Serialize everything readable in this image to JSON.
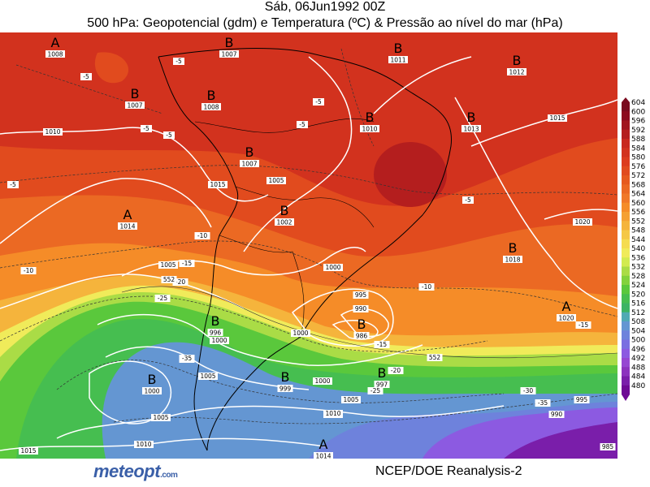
{
  "title": {
    "line1": "Sáb, 06Jun1992 00Z",
    "line2": "500 hPa: Geopotencial (gdm) e Temperatura (ºC) & Pressão ao nível do mar (hPa)"
  },
  "footer": {
    "logo": "meteopt",
    "logo_suffix": ".com",
    "credit": "NCEP/DOE Reanalysis-2"
  },
  "colorbar": {
    "levels": [
      "604",
      "600",
      "596",
      "592",
      "588",
      "584",
      "580",
      "576",
      "572",
      "568",
      "564",
      "560",
      "556",
      "552",
      "548",
      "544",
      "540",
      "536",
      "532",
      "528",
      "524",
      "520",
      "516",
      "512",
      "508",
      "504",
      "500",
      "496",
      "492",
      "488",
      "484",
      "480"
    ],
    "colors": [
      "#7a0a1e",
      "#8c0a1e",
      "#a0141e",
      "#b41e1e",
      "#c8281e",
      "#d2321e",
      "#dc3c1e",
      "#e14b1e",
      "#e65a1e",
      "#eb6923",
      "#f07828",
      "#f58c28",
      "#f5a032",
      "#f5b43c",
      "#f5c846",
      "#f5dc50",
      "#f0eb5a",
      "#d2eb50",
      "#aadc46",
      "#82d23c",
      "#5ac83c",
      "#46be50",
      "#3cb464",
      "#50aab4",
      "#6496d2",
      "#6e82dc",
      "#7a6ee1",
      "#8c5ae1",
      "#9646d2",
      "#8c32be",
      "#7a1eaa",
      "#6e0a96"
    ]
  },
  "pressure_systems": [
    {
      "type": "A",
      "value": "1008"
    },
    {
      "type": "B",
      "value": "1007"
    },
    {
      "type": "B",
      "value": "1011"
    },
    {
      "type": "B",
      "value": "1012"
    },
    {
      "type": "B",
      "value": "1007"
    },
    {
      "type": "B",
      "value": "1008"
    },
    {
      "type": "B",
      "value": "1010"
    },
    {
      "type": "B",
      "value": "1013"
    },
    {
      "type": "B",
      "value": "1007"
    },
    {
      "type": "A",
      "value": "1014"
    },
    {
      "type": "B",
      "value": "1002"
    },
    {
      "type": "B",
      "value": "1018"
    },
    {
      "type": "A",
      "value": "1020"
    },
    {
      "type": "B",
      "value": "986"
    },
    {
      "type": "B",
      "value": "996"
    },
    {
      "type": "B",
      "value": "1000"
    },
    {
      "type": "B",
      "value": "999"
    },
    {
      "type": "B",
      "value": "997"
    },
    {
      "type": "A",
      "value": "1014"
    }
  ],
  "isobar_labels": [
    "1010",
    "1015",
    "1005",
    "1005",
    "1000",
    "1000",
    "995",
    "990",
    "1000",
    "1000",
    "1005",
    "1010",
    "1015",
    "1010",
    "1020",
    "995",
    "990",
    "1000",
    "1005",
    "1005",
    "1010",
    "1015",
    "1020",
    "985"
  ],
  "temperature_labels": [
    "-5",
    "-5",
    "-5",
    "-5",
    "-5",
    "-5",
    "-5",
    "-5",
    "-10",
    "-10",
    "-15",
    "-20",
    "-10",
    "-15",
    "-25",
    "-30",
    "-35",
    "-20",
    "-25",
    "-15",
    "-30",
    "-35"
  ],
  "geopotential_labels": [
    "552",
    "552"
  ]
}
